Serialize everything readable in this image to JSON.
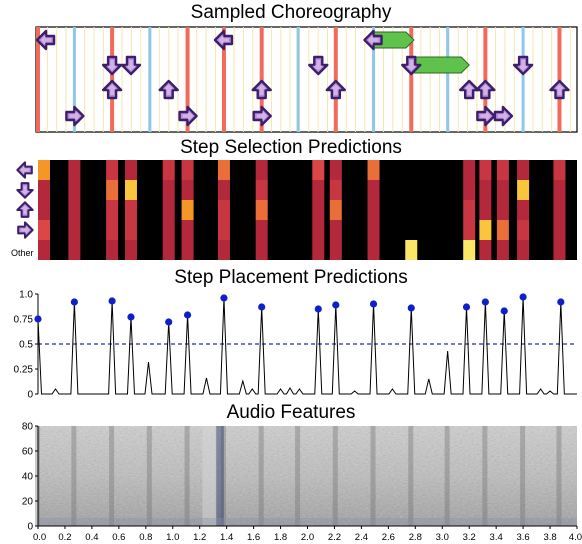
{
  "panels": {
    "choreography": {
      "title": "Sampled Choreography"
    },
    "selection": {
      "title": "Step Selection Predictions",
      "row_labels": [
        "←",
        "↓",
        "↑",
        "→",
        "Other"
      ]
    },
    "placement": {
      "title": "Step Placement Predictions"
    },
    "audio": {
      "title": "Audio Features"
    }
  },
  "colors": {
    "red_beat": "#f26a5a",
    "blue_beat": "#8ec7ea",
    "thin_line": "#f5e6b0",
    "arrow_fill": "#b98ad9",
    "arrow_outline": "#3b1f6b",
    "hold_fill": "#5fc24a",
    "dot": "#1020c8",
    "threshold": "#2a2ab0"
  },
  "chart_data": [
    {
      "type": "other",
      "title": "Sampled Choreography",
      "beats": [
        {
          "t": 0.0,
          "kind": "red"
        },
        {
          "t": 0.27,
          "kind": "blue"
        },
        {
          "t": 0.55,
          "kind": "red"
        },
        {
          "t": 0.83,
          "kind": "blue"
        },
        {
          "t": 1.11,
          "kind": "red"
        },
        {
          "t": 1.38,
          "kind": "red"
        },
        {
          "t": 1.66,
          "kind": "red"
        },
        {
          "t": 1.93,
          "kind": "blue"
        },
        {
          "t": 2.21,
          "kind": "red"
        },
        {
          "t": 2.49,
          "kind": "blue"
        },
        {
          "t": 2.77,
          "kind": "red"
        },
        {
          "t": 3.04,
          "kind": "blue"
        },
        {
          "t": 3.32,
          "kind": "red"
        },
        {
          "t": 3.6,
          "kind": "blue"
        },
        {
          "t": 3.87,
          "kind": "red"
        }
      ],
      "steps": [
        {
          "t": 0.03,
          "lane": "left"
        },
        {
          "t": 0.27,
          "lane": "right"
        },
        {
          "t": 0.55,
          "lane": "down"
        },
        {
          "t": 0.55,
          "lane": "up"
        },
        {
          "t": 0.69,
          "lane": "down"
        },
        {
          "t": 0.97,
          "lane": "up"
        },
        {
          "t": 1.11,
          "lane": "right"
        },
        {
          "t": 1.38,
          "lane": "left"
        },
        {
          "t": 1.66,
          "lane": "up"
        },
        {
          "t": 1.66,
          "lane": "right"
        },
        {
          "t": 2.08,
          "lane": "down"
        },
        {
          "t": 2.21,
          "lane": "up"
        },
        {
          "t": 2.49,
          "lane": "left",
          "hold_end": 2.79
        },
        {
          "t": 2.77,
          "lane": "down",
          "hold_end": 3.2
        },
        {
          "t": 3.2,
          "lane": "up"
        },
        {
          "t": 3.32,
          "lane": "up"
        },
        {
          "t": 3.32,
          "lane": "right"
        },
        {
          "t": 3.45,
          "lane": "right"
        },
        {
          "t": 3.6,
          "lane": "down"
        },
        {
          "t": 3.87,
          "lane": "up"
        }
      ]
    },
    {
      "type": "heatmap",
      "title": "Step Selection Predictions",
      "rows": [
        "left",
        "down",
        "up",
        "right",
        "other"
      ],
      "columns": [
        {
          "t": 0.0,
          "v": [
            0.7,
            0.3,
            0.3,
            0.5,
            0.3
          ]
        },
        {
          "t": 0.27,
          "v": [
            0.3,
            0.3,
            0.3,
            0.3,
            0.3
          ]
        },
        {
          "t": 0.55,
          "v": [
            0.4,
            0.6,
            0.4,
            0.4,
            0.3
          ]
        },
        {
          "t": 0.69,
          "v": [
            0.3,
            0.8,
            0.4,
            0.4,
            0.3
          ]
        },
        {
          "t": 0.97,
          "v": [
            0.4,
            0.3,
            0.3,
            0.3,
            0.3
          ]
        },
        {
          "t": 1.11,
          "v": [
            0.4,
            0.3,
            0.7,
            0.3,
            0.3
          ]
        },
        {
          "t": 1.38,
          "v": [
            0.6,
            0.3,
            0.4,
            0.4,
            0.3
          ]
        },
        {
          "t": 1.66,
          "v": [
            0.3,
            0.4,
            0.6,
            0.3,
            0.3
          ]
        },
        {
          "t": 2.08,
          "v": [
            0.5,
            0.3,
            0.3,
            0.3,
            0.3
          ]
        },
        {
          "t": 2.21,
          "v": [
            0.3,
            0.4,
            0.6,
            0.3,
            0.3
          ]
        },
        {
          "t": 2.49,
          "v": [
            0.6,
            0.3,
            0.3,
            0.3,
            0.3
          ]
        },
        {
          "t": 2.77,
          "v": [
            0.0,
            0.0,
            0.0,
            0.0,
            0.9
          ]
        },
        {
          "t": 3.2,
          "v": [
            0.3,
            0.3,
            0.4,
            0.4,
            0.9
          ]
        },
        {
          "t": 3.32,
          "v": [
            0.4,
            0.3,
            0.3,
            0.8,
            0.3
          ]
        },
        {
          "t": 3.45,
          "v": [
            0.4,
            0.3,
            0.3,
            0.6,
            0.3
          ]
        },
        {
          "t": 3.6,
          "v": [
            0.3,
            0.8,
            0.3,
            0.4,
            0.3
          ]
        },
        {
          "t": 3.87,
          "v": [
            0.4,
            0.3,
            0.3,
            0.3,
            0.3
          ]
        }
      ]
    },
    {
      "type": "line",
      "title": "Step Placement Predictions",
      "ylim": [
        0,
        1.0
      ],
      "yticks": [
        "0",
        "0.25",
        "0.5",
        "0.75",
        "1.0"
      ],
      "threshold": 0.5,
      "peaks": [
        {
          "t": 0.0,
          "v": 0.75,
          "selected": true
        },
        {
          "t": 0.13,
          "v": 0.05,
          "selected": false
        },
        {
          "t": 0.27,
          "v": 0.92,
          "selected": true
        },
        {
          "t": 0.55,
          "v": 0.93,
          "selected": true
        },
        {
          "t": 0.69,
          "v": 0.77,
          "selected": true
        },
        {
          "t": 0.82,
          "v": 0.32,
          "selected": false
        },
        {
          "t": 0.97,
          "v": 0.72,
          "selected": true
        },
        {
          "t": 1.11,
          "v": 0.79,
          "selected": true
        },
        {
          "t": 1.25,
          "v": 0.16,
          "selected": false
        },
        {
          "t": 1.38,
          "v": 0.96,
          "selected": true
        },
        {
          "t": 1.52,
          "v": 0.13,
          "selected": false
        },
        {
          "t": 1.59,
          "v": 0.05,
          "selected": false
        },
        {
          "t": 1.66,
          "v": 0.87,
          "selected": true
        },
        {
          "t": 1.8,
          "v": 0.05,
          "selected": false
        },
        {
          "t": 1.87,
          "v": 0.06,
          "selected": false
        },
        {
          "t": 1.94,
          "v": 0.05,
          "selected": false
        },
        {
          "t": 2.08,
          "v": 0.85,
          "selected": true
        },
        {
          "t": 2.21,
          "v": 0.89,
          "selected": true
        },
        {
          "t": 2.35,
          "v": 0.03,
          "selected": false
        },
        {
          "t": 2.49,
          "v": 0.9,
          "selected": true
        },
        {
          "t": 2.63,
          "v": 0.05,
          "selected": false
        },
        {
          "t": 2.77,
          "v": 0.86,
          "selected": true
        },
        {
          "t": 2.9,
          "v": 0.15,
          "selected": false
        },
        {
          "t": 3.04,
          "v": 0.43,
          "selected": false
        },
        {
          "t": 3.18,
          "v": 0.87,
          "selected": true
        },
        {
          "t": 3.32,
          "v": 0.92,
          "selected": true
        },
        {
          "t": 3.46,
          "v": 0.83,
          "selected": true
        },
        {
          "t": 3.6,
          "v": 0.97,
          "selected": true
        },
        {
          "t": 3.73,
          "v": 0.05,
          "selected": false
        },
        {
          "t": 3.8,
          "v": 0.03,
          "selected": false
        },
        {
          "t": 3.88,
          "v": 0.92,
          "selected": true
        }
      ]
    },
    {
      "type": "heatmap",
      "title": "Audio Features",
      "ylim": [
        0,
        80
      ],
      "yticks": [
        "0",
        "20",
        "40",
        "60",
        "80"
      ],
      "xlim": [
        0.0,
        4.0
      ],
      "xticks": [
        "0.0",
        "0.2",
        "0.4",
        "0.6",
        "0.8",
        "1.0",
        "1.2",
        "1.4",
        "1.6",
        "1.8",
        "2.0",
        "2.2",
        "2.4",
        "2.6",
        "2.8",
        "3.0",
        "3.2",
        "3.4",
        "3.6",
        "3.8",
        "4.0"
      ]
    }
  ]
}
